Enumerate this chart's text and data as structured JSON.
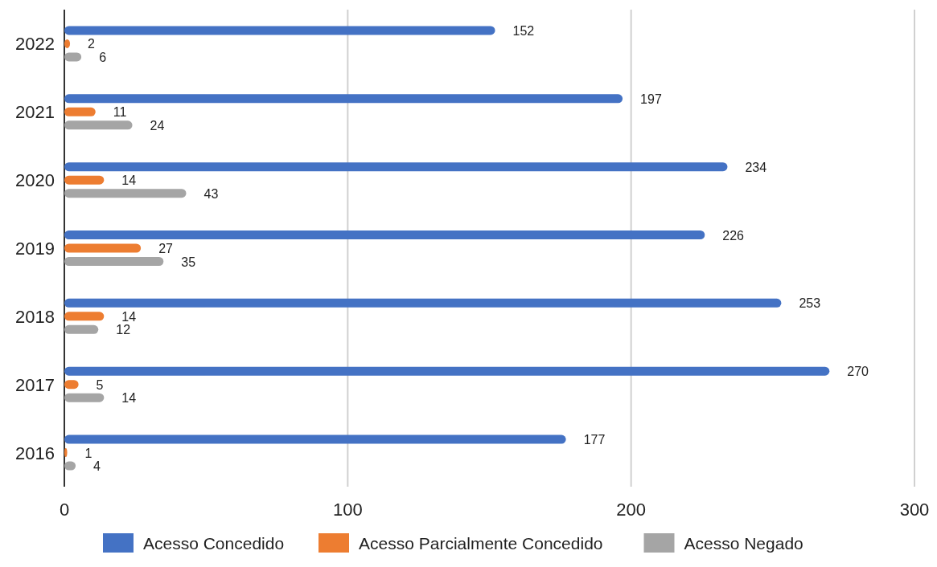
{
  "chart_data": {
    "type": "bar",
    "orientation": "horizontal",
    "categories": [
      "2022",
      "2021",
      "2020",
      "2019",
      "2018",
      "2017",
      "2016"
    ],
    "series": [
      {
        "name": "Acesso Concedido",
        "color": "#4472c4",
        "values": [
          152,
          197,
          234,
          226,
          253,
          270,
          177
        ]
      },
      {
        "name": "Acesso Parcialmente Concedido",
        "color": "#ed7d31",
        "values": [
          2,
          11,
          14,
          27,
          14,
          5,
          1
        ]
      },
      {
        "name": "Acesso Negado",
        "color": "#a5a5a5",
        "values": [
          6,
          24,
          43,
          35,
          12,
          14,
          4
        ]
      }
    ],
    "xlim": [
      0,
      300
    ],
    "xticks": [
      0,
      100,
      200,
      300
    ],
    "grid": "x",
    "legend": "bottom",
    "data_labels": true
  }
}
